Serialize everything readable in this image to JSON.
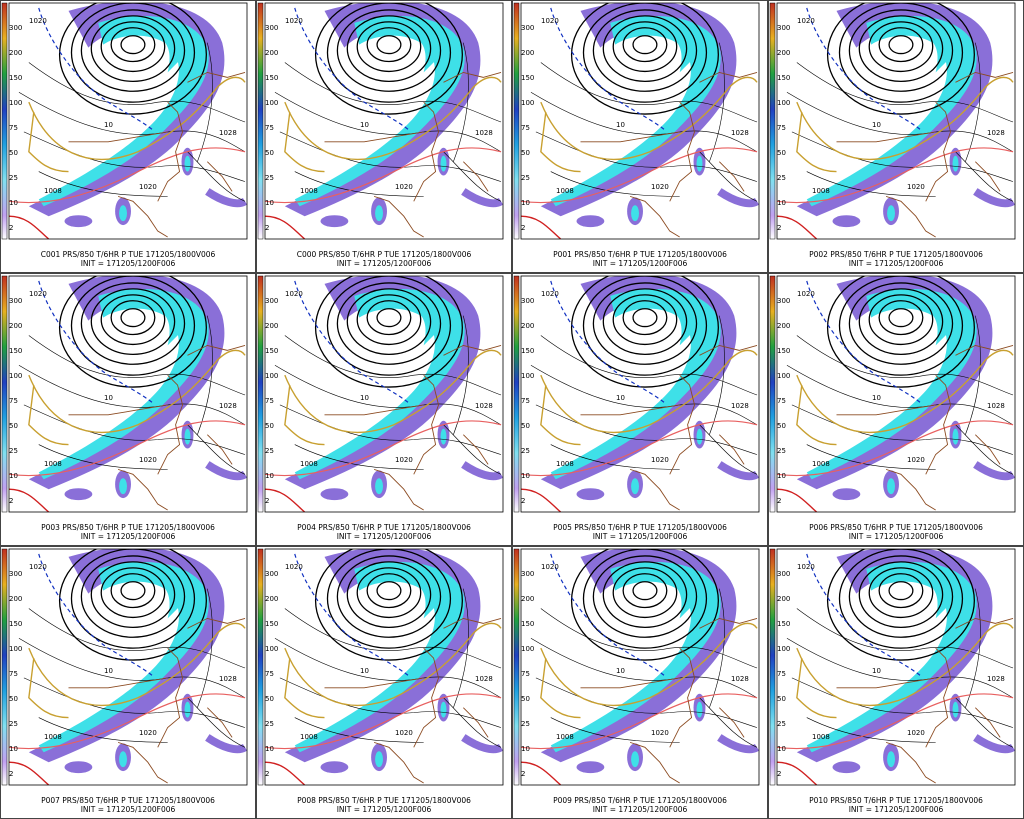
{
  "panels": [
    {
      "title": "C001 PRS/850 T/6HR P TUE 171205/1800V006",
      "init": "INIT = 171205/1200F006"
    },
    {
      "title": "C000 PRS/850 T/6HR P TUE 171205/1800V006",
      "init": "INIT = 171205/1200F006"
    },
    {
      "title": "P001 PRS/850 T/6HR P TUE 171205/1800V006",
      "init": "INIT = 171205/1200F006"
    },
    {
      "title": "P002 PRS/850 T/6HR P TUE 171205/1800V006",
      "init": "INIT = 171205/1200F006"
    },
    {
      "title": "P003 PRS/850 T/6HR P TUE 171205/1800V006",
      "init": "INIT = 171205/1200F006"
    },
    {
      "title": "P004 PRS/850 T/6HR P TUE 171205/1800V006",
      "init": "INIT = 171205/1200F006"
    },
    {
      "title": "P005 PRS/850 T/6HR P TUE 171205/1800V006",
      "init": "INIT = 171205/1200F006"
    },
    {
      "title": "P006 PRS/850 T/6HR P TUE 171205/1800V006",
      "init": "INIT = 171205/1200F006"
    },
    {
      "title": "P007 PRS/850 T/6HR P TUE 171205/1800V006",
      "init": "INIT = 171205/1200F006"
    },
    {
      "title": "P008 PRS/850 T/6HR P TUE 171205/1800V006",
      "init": "INIT = 171205/1200F006"
    },
    {
      "title": "P009 PRS/850 T/6HR P TUE 171205/1800V006",
      "init": "INIT = 171205/1200F006"
    },
    {
      "title": "P010 PRS/850 T/6HR P TUE 171205/1800V006",
      "init": "INIT = 171205/1200F006"
    }
  ],
  "colorbar": {
    "ticks": [
      300,
      200,
      150,
      100,
      75,
      50,
      25,
      10,
      2
    ]
  },
  "map_labels": [
    "1020",
    "1028",
    "1020",
    "1008",
    "10"
  ]
}
